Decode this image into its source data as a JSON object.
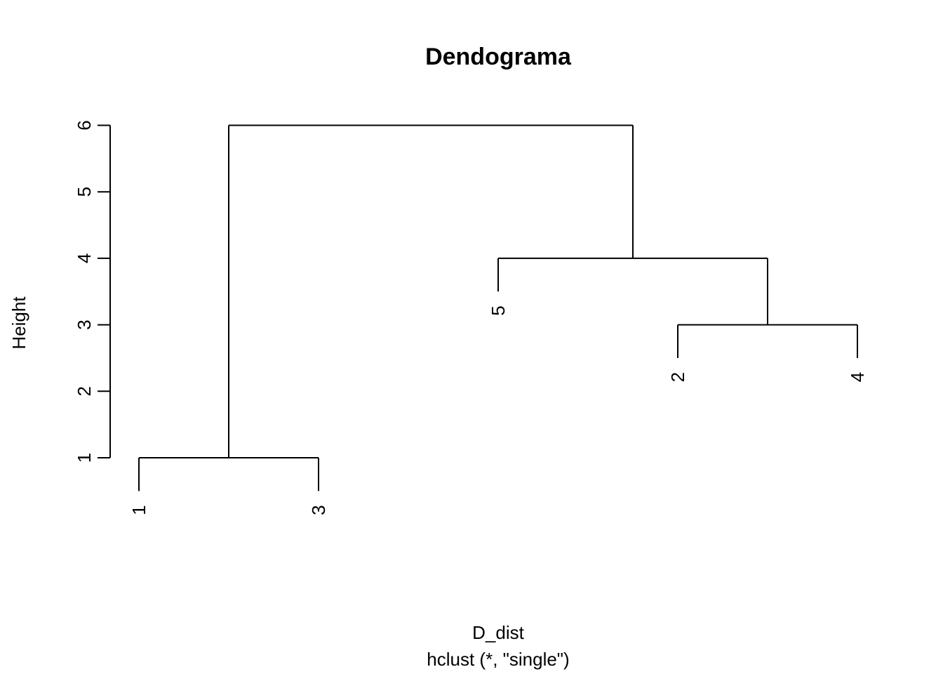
{
  "chart_data": {
    "type": "dendrogram",
    "title": "Dendograma",
    "xlabel": "D_dist",
    "sublabel": "hclust (*, \"single\")",
    "ylabel": "Height",
    "yticks": [
      1,
      2,
      3,
      4,
      5,
      6
    ],
    "leaf_order": [
      "1",
      "3",
      "5",
      "2",
      "4"
    ],
    "merges": [
      {
        "id": "m1",
        "left": "leaf:1",
        "right": "leaf:3",
        "height": 1
      },
      {
        "id": "m2",
        "left": "leaf:2",
        "right": "leaf:4",
        "height": 3
      },
      {
        "id": "m3",
        "left": "leaf:5",
        "right": "m2",
        "height": 4
      },
      {
        "id": "m4",
        "left": "m1",
        "right": "m3",
        "height": 6
      }
    ],
    "ylim": [
      0,
      6
    ],
    "colors": {
      "line": "#000000",
      "background": "#ffffff"
    }
  }
}
